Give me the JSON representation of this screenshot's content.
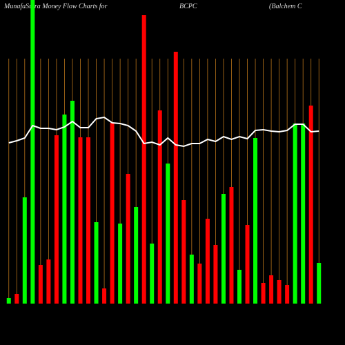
{
  "chart_data": {
    "type": "bar-line",
    "title": "MunafaSutra  Money Flow  Charts for",
    "symbol": "BCPC",
    "company": "(Balchem C",
    "categories": [
      null,
      null,
      null,
      null,
      null,
      null,
      null,
      null,
      null,
      null,
      null,
      null,
      null,
      null,
      null,
      null,
      null,
      null,
      null,
      null,
      null,
      null,
      null,
      null,
      null,
      null,
      null,
      null,
      null,
      null,
      null,
      null,
      null,
      null,
      null,
      null,
      null,
      null,
      null,
      null
    ],
    "ylim": [
      0,
      440
    ],
    "bars": {
      "values": [
        8,
        14,
        154,
        440,
        56,
        64,
        244,
        274,
        294,
        241,
        241,
        118,
        22,
        262,
        116,
        188,
        140,
        418,
        87,
        280,
        203,
        365,
        150,
        71,
        58,
        123,
        85,
        159,
        169,
        49,
        114,
        240,
        30,
        41,
        34,
        27,
        261,
        261,
        287,
        59
      ],
      "colors": [
        "#00ff00",
        "#ff0000",
        "#00ff00",
        "#00ff00",
        "#ff0000",
        "#ff0000",
        "#ff0000",
        "#00ff00",
        "#00ff00",
        "#ff0000",
        "#ff0000",
        "#00ff00",
        "#ff0000",
        "#ff0000",
        "#00ff00",
        "#ff0000",
        "#00ff00",
        "#ff0000",
        "#00ff00",
        "#ff0000",
        "#00ff00",
        "#ff0000",
        "#ff0000",
        "#00ff00",
        "#ff0000",
        "#ff0000",
        "#ff0000",
        "#00ff00",
        "#ff0000",
        "#00ff00",
        "#ff0000",
        "#00ff00",
        "#ff0000",
        "#ff0000",
        "#ff0000",
        "#ff0000",
        "#00ff00",
        "#00ff00",
        "#ff0000",
        "#00ff00"
      ]
    },
    "line": {
      "color": "#ffffff",
      "values": [
        233,
        236,
        240,
        258,
        254,
        254,
        252,
        256,
        264,
        255,
        255,
        268,
        270,
        262,
        261,
        258,
        250,
        232,
        234,
        230,
        240,
        230,
        228,
        232,
        232,
        238,
        235,
        242,
        238,
        242,
        239,
        251,
        252,
        250,
        249,
        251,
        260,
        260,
        249,
        250
      ]
    },
    "grid_color": "#b8731a"
  }
}
